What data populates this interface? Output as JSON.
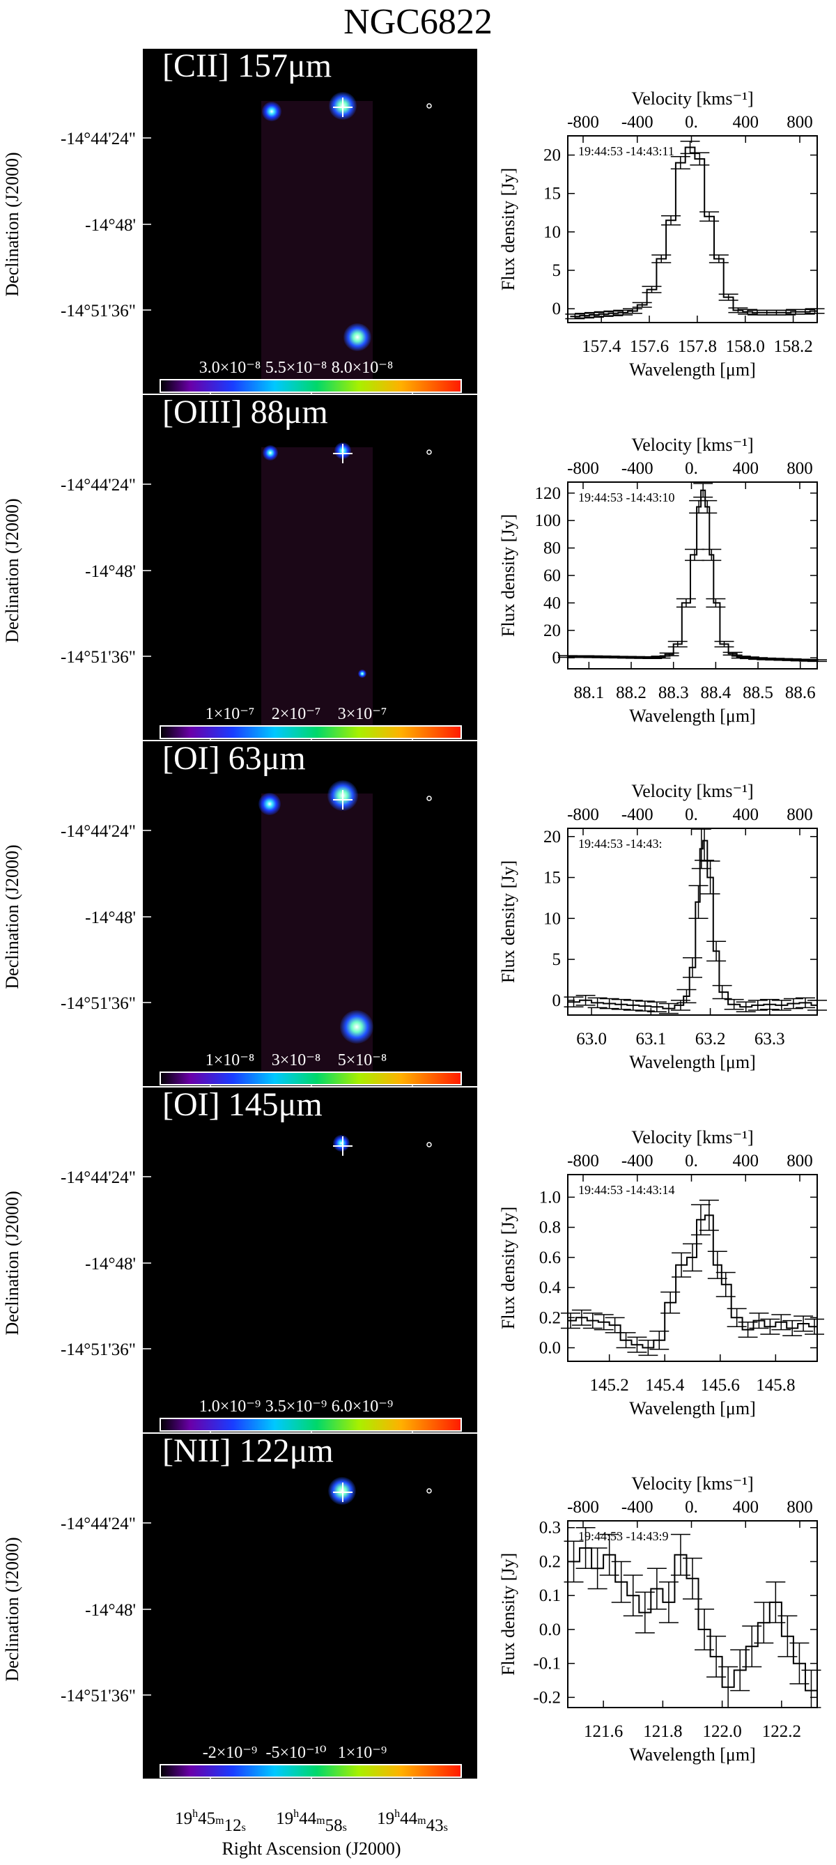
{
  "figure": {
    "title": "NGC6822",
    "ra_label": "Right Ascension (J2000)",
    "dec_label": "Declination (J2000)",
    "ra_ticks": [
      {
        "h": "19",
        "m": "45",
        "s": "12"
      },
      {
        "h": "19",
        "m": "44",
        "s": "58"
      },
      {
        "h": "19",
        "m": "44",
        "s": "43"
      }
    ],
    "dec_ticks": [
      "-14°44'24\"",
      "-14°48'",
      "-14°51'36\""
    ],
    "colors": {
      "map_background": "#000000",
      "footprint": "#1b0717",
      "line": "#000000"
    }
  },
  "panels": [
    {
      "line": "[CII] 157μm",
      "colorbar_ticks": [
        "3.0×10⁻⁸",
        "5.5×10⁻⁸",
        "8.0×10⁻⁸"
      ],
      "position_label": "19:44:53 -14:43:11"
    },
    {
      "line": "[OIII] 88μm",
      "colorbar_ticks": [
        "1×10⁻⁷",
        "2×10⁻⁷",
        "3×10⁻⁷"
      ],
      "position_label": "19:44:53 -14:43:10"
    },
    {
      "line": "[OI] 63μm",
      "colorbar_ticks": [
        "1×10⁻⁸",
        "3×10⁻⁸",
        "5×10⁻⁸"
      ],
      "position_label": "19:44:53 -14:43:"
    },
    {
      "line": "[OI] 145μm",
      "colorbar_ticks": [
        "1.0×10⁻⁹",
        "3.5×10⁻⁹",
        "6.0×10⁻⁹"
      ],
      "position_label": "19:44:53 -14:43:14"
    },
    {
      "line": "[NII] 122μm",
      "colorbar_ticks": [
        "-2×10⁻⁹",
        "-5×10⁻¹⁰",
        "1×10⁻⁹"
      ],
      "position_label": "19:44:53 -14:43:9"
    }
  ],
  "chart_data": [
    {
      "type": "line",
      "panel": "[CII] 157μm",
      "xlabel": "Wavelength [μm]",
      "ylabel": "Flux density [Jy]",
      "top_xlabel": "Velocity [kms⁻¹]",
      "xlim": [
        157.26,
        158.3
      ],
      "ylim": [
        -1.8,
        22.5
      ],
      "x_ticks": [
        157.4,
        157.6,
        157.8,
        158.0,
        158.2
      ],
      "x_tick_labels": [
        "157.4",
        "157.6",
        "157.8",
        "158.0",
        "158.2"
      ],
      "y_ticks": [
        0,
        5,
        10,
        15,
        20
      ],
      "top_ticks": [
        -800,
        -400,
        0,
        400,
        800
      ],
      "top_tick_labels": [
        "-800",
        "-400",
        "0.",
        "400",
        "800"
      ],
      "x": [
        157.29,
        157.33,
        157.37,
        157.41,
        157.45,
        157.49,
        157.53,
        157.57,
        157.61,
        157.65,
        157.69,
        157.73,
        157.77,
        157.81,
        157.85,
        157.89,
        157.93,
        157.97,
        158.01,
        158.05,
        158.09,
        158.13,
        158.17,
        158.21,
        158.25,
        158.29
      ],
      "y": [
        -1.0,
        -0.9,
        -0.8,
        -0.7,
        -0.6,
        -0.5,
        -0.3,
        0.5,
        2.5,
        6.5,
        11.5,
        19.0,
        21.0,
        19.5,
        12.0,
        6.5,
        1.5,
        -0.2,
        -0.4,
        -0.5,
        -0.5,
        -0.5,
        -0.5,
        -0.4,
        -0.4,
        -0.3
      ],
      "yerr": [
        0.3,
        0.3,
        0.3,
        0.3,
        0.3,
        0.3,
        0.3,
        0.3,
        0.4,
        0.5,
        0.6,
        0.8,
        0.8,
        0.8,
        0.6,
        0.5,
        0.4,
        0.3,
        0.3,
        0.3,
        0.3,
        0.3,
        0.3,
        0.3,
        0.3,
        0.3
      ]
    },
    {
      "type": "line",
      "panel": "[OIII] 88μm",
      "xlabel": "Wavelength [μm]",
      "ylabel": "Flux density [Jy]",
      "top_xlabel": "Velocity [kms⁻¹]",
      "xlim": [
        88.05,
        88.64
      ],
      "ylim": [
        -8,
        128
      ],
      "x_ticks": [
        88.1,
        88.2,
        88.3,
        88.4,
        88.5,
        88.6
      ],
      "x_tick_labels": [
        "88.1",
        "88.2",
        "88.3",
        "88.4",
        "88.5",
        "88.6"
      ],
      "y_ticks": [
        0,
        20,
        40,
        60,
        80,
        100,
        120
      ],
      "top_ticks": [
        -800,
        -400,
        0,
        400,
        800
      ],
      "top_tick_labels": [
        "-800",
        "-400",
        "0.",
        "400",
        "800"
      ],
      "x": [
        88.05,
        88.07,
        88.09,
        88.11,
        88.13,
        88.15,
        88.17,
        88.19,
        88.21,
        88.23,
        88.25,
        88.27,
        88.29,
        88.31,
        88.33,
        88.35,
        88.36,
        88.37,
        88.38,
        88.39,
        88.4,
        88.42,
        88.44,
        88.46,
        88.48,
        88.5,
        88.52,
        88.54,
        88.56,
        88.58,
        88.6,
        88.62,
        88.64
      ],
      "y": [
        1.0,
        0.9,
        0.9,
        0.8,
        0.7,
        0.6,
        0.5,
        0.4,
        0.3,
        0.2,
        0.1,
        0.5,
        2.5,
        10.0,
        40.0,
        75.0,
        110.0,
        122.0,
        110.0,
        75.0,
        40.0,
        10.0,
        3.0,
        0.5,
        0.0,
        -0.5,
        -0.8,
        -1.0,
        -1.2,
        -1.4,
        -1.6,
        -1.8,
        -2.0
      ],
      "yerr": [
        0.6,
        0.6,
        0.6,
        0.6,
        0.6,
        0.6,
        0.6,
        0.6,
        0.6,
        0.6,
        0.6,
        0.7,
        1.0,
        2.0,
        3.0,
        4.0,
        4.5,
        5.0,
        4.5,
        4.0,
        3.0,
        2.0,
        1.0,
        0.7,
        0.6,
        0.6,
        0.6,
        0.6,
        0.6,
        0.6,
        0.6,
        0.6,
        0.6
      ]
    },
    {
      "type": "line",
      "panel": "[OI] 63μm",
      "xlabel": "Wavelength [μm]",
      "ylabel": "Flux density [Jy]",
      "top_xlabel": "Velocity [kms⁻¹]",
      "xlim": [
        62.96,
        63.38
      ],
      "ylim": [
        -1.8,
        21
      ],
      "x_ticks": [
        63.0,
        63.1,
        63.2,
        63.3
      ],
      "x_tick_labels": [
        "63.0",
        "63.1",
        "63.2",
        "63.3"
      ],
      "y_ticks": [
        0,
        5,
        10,
        15,
        20
      ],
      "top_ticks": [
        -800,
        -400,
        0,
        400,
        800
      ],
      "top_tick_labels": [
        "-800",
        "-400",
        "0.",
        "400",
        "800"
      ],
      "x": [
        62.97,
        62.99,
        63.01,
        63.03,
        63.05,
        63.07,
        63.09,
        63.11,
        63.13,
        63.15,
        63.16,
        63.17,
        63.18,
        63.185,
        63.19,
        63.2,
        63.21,
        63.22,
        63.24,
        63.26,
        63.28,
        63.3,
        63.32,
        63.34,
        63.36,
        63.38
      ],
      "y": [
        -0.2,
        0.0,
        -0.3,
        -0.4,
        -0.5,
        -0.6,
        -0.7,
        -0.8,
        -1.0,
        -0.6,
        0.5,
        4.0,
        12.0,
        18.5,
        19.5,
        15.0,
        6.0,
        1.0,
        -0.5,
        -0.8,
        -0.6,
        -0.5,
        -0.6,
        -0.4,
        -0.3,
        -0.6
      ],
      "yerr": [
        0.6,
        0.6,
        0.6,
        0.6,
        0.6,
        0.6,
        0.6,
        0.6,
        0.6,
        0.6,
        0.8,
        1.2,
        2.0,
        2.4,
        2.4,
        2.0,
        1.2,
        0.8,
        0.6,
        0.6,
        0.6,
        0.6,
        0.6,
        0.6,
        0.6,
        0.6
      ]
    },
    {
      "type": "line",
      "panel": "[OI] 145μm",
      "xlabel": "Wavelength [μm]",
      "ylabel": "Flux density [Jy]",
      "top_xlabel": "Velocity [kms⁻¹]",
      "xlim": [
        145.05,
        145.95
      ],
      "ylim": [
        -0.09,
        1.15
      ],
      "x_ticks": [
        145.2,
        145.4,
        145.6,
        145.8
      ],
      "x_tick_labels": [
        "145.2",
        "145.4",
        "145.6",
        "145.8"
      ],
      "y_ticks": [
        0.0,
        0.2,
        0.4,
        0.6,
        0.8,
        1.0
      ],
      "y_tick_labels": [
        "0.0",
        "0.2",
        "0.4",
        "0.6",
        "0.8",
        "1.0"
      ],
      "top_ticks": [
        -800,
        -400,
        0,
        400,
        800
      ],
      "top_tick_labels": [
        "-800",
        "-400",
        "0.",
        "400",
        "800"
      ],
      "x": [
        145.06,
        145.1,
        145.14,
        145.18,
        145.22,
        145.26,
        145.3,
        145.34,
        145.38,
        145.42,
        145.46,
        145.5,
        145.53,
        145.56,
        145.59,
        145.62,
        145.66,
        145.7,
        145.74,
        145.78,
        145.82,
        145.86,
        145.9,
        145.94
      ],
      "y": [
        0.18,
        0.2,
        0.18,
        0.17,
        0.15,
        0.05,
        0.02,
        0.0,
        0.05,
        0.3,
        0.55,
        0.6,
        0.85,
        0.88,
        0.55,
        0.42,
        0.2,
        0.12,
        0.18,
        0.14,
        0.17,
        0.13,
        0.16,
        0.14
      ],
      "yerr": [
        0.05,
        0.05,
        0.05,
        0.05,
        0.05,
        0.05,
        0.05,
        0.05,
        0.06,
        0.07,
        0.08,
        0.09,
        0.1,
        0.1,
        0.09,
        0.08,
        0.06,
        0.05,
        0.05,
        0.05,
        0.05,
        0.05,
        0.05,
        0.05
      ]
    },
    {
      "type": "line",
      "panel": "[NII] 122μm",
      "xlabel": "Wavelength [μm]",
      "ylabel": "Flux density [Jy]",
      "top_xlabel": "Velocity [kms⁻¹]",
      "xlim": [
        121.48,
        122.32
      ],
      "ylim": [
        -0.23,
        0.32
      ],
      "x_ticks": [
        121.6,
        121.8,
        122.0,
        122.2
      ],
      "x_tick_labels": [
        "121.6",
        "121.8",
        "122.0",
        "122.2"
      ],
      "y_ticks": [
        -0.2,
        -0.1,
        0.0,
        0.1,
        0.2,
        0.3
      ],
      "y_tick_labels": [
        "-0.2",
        "-0.1",
        "0.0",
        "0.1",
        "0.2",
        "0.3"
      ],
      "top_ticks": [
        -800,
        -400,
        0,
        400,
        800
      ],
      "top_tick_labels": [
        "-800",
        "-400",
        "0.",
        "400",
        "800"
      ],
      "x": [
        121.5,
        121.54,
        121.58,
        121.62,
        121.66,
        121.7,
        121.74,
        121.78,
        121.82,
        121.86,
        121.9,
        121.94,
        121.98,
        122.02,
        122.06,
        122.1,
        122.14,
        122.18,
        122.22,
        122.26,
        122.3
      ],
      "y": [
        0.2,
        0.24,
        0.18,
        0.22,
        0.14,
        0.1,
        0.05,
        0.12,
        0.08,
        0.22,
        0.15,
        0.0,
        -0.08,
        -0.17,
        -0.12,
        -0.05,
        0.02,
        0.08,
        -0.02,
        -0.1,
        -0.18
      ],
      "yerr": [
        0.06,
        0.06,
        0.06,
        0.06,
        0.06,
        0.06,
        0.06,
        0.06,
        0.06,
        0.06,
        0.06,
        0.06,
        0.06,
        0.06,
        0.06,
        0.06,
        0.06,
        0.06,
        0.06,
        0.06,
        0.06
      ]
    }
  ]
}
